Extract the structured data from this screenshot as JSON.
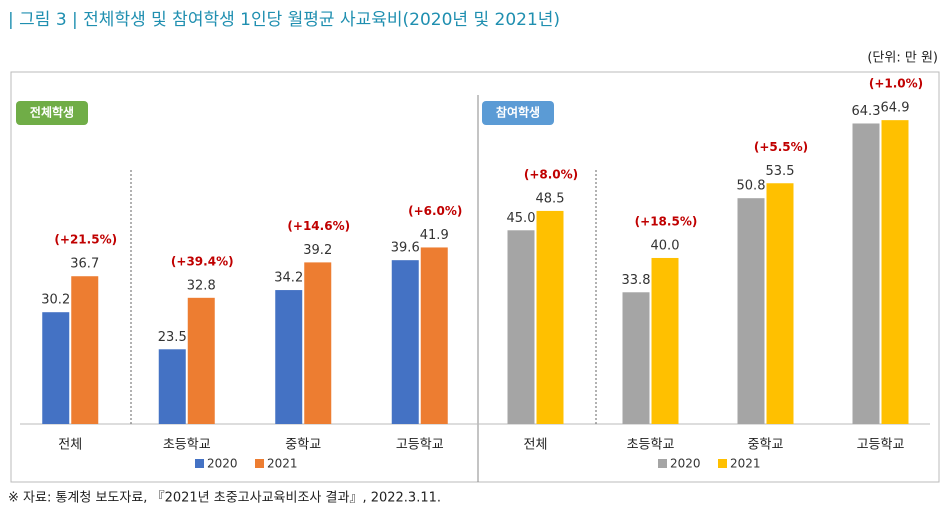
{
  "title": "| 그림 3 | 전체학생 및 참여학생 1인당 월평균 사교육비(2020년 및 2021년)",
  "unit": "(단위: 만 원)",
  "source": "※ 자료: 통계청 보도자료, 『2021년 초중고사교육비조사 결과』, 2022.3.11.",
  "chart_data": [
    {
      "type": "bar",
      "title": "전체학생",
      "badge_color": "#70ad47",
      "categories": [
        "전체",
        "초등학교",
        "중학교",
        "고등학교"
      ],
      "ylim": [
        10,
        68
      ],
      "series": [
        {
          "name": "2020",
          "color": "#4472c4",
          "values": [
            30.2,
            23.5,
            34.2,
            39.6
          ]
        },
        {
          "name": "2021",
          "color": "#ed7d31",
          "values": [
            36.7,
            32.8,
            39.2,
            41.9
          ]
        }
      ],
      "change_labels": [
        "(+21.5%)",
        "(+39.4%)",
        "(+14.6%)",
        "(+6.0%)"
      ]
    },
    {
      "type": "bar",
      "title": "참여학생",
      "badge_color": "#5b9bd5",
      "categories": [
        "전체",
        "초등학교",
        "중학교",
        "고등학교"
      ],
      "ylim": [
        10,
        68
      ],
      "series": [
        {
          "name": "2020",
          "color": "#a5a5a5",
          "values": [
            45.0,
            33.8,
            50.8,
            64.3
          ],
          "value_labels": [
            "45.0",
            "33.8",
            "50.8",
            "64.3"
          ]
        },
        {
          "name": "2021",
          "color": "#ffc000",
          "values": [
            48.5,
            40.0,
            53.5,
            64.9
          ],
          "value_labels": [
            "48.5",
            "40.0",
            "53.5",
            "64.9"
          ]
        }
      ],
      "change_labels": [
        "(+8.0%)",
        "(+18.5%)",
        "(+5.5%)",
        "(+1.0%)"
      ]
    }
  ]
}
